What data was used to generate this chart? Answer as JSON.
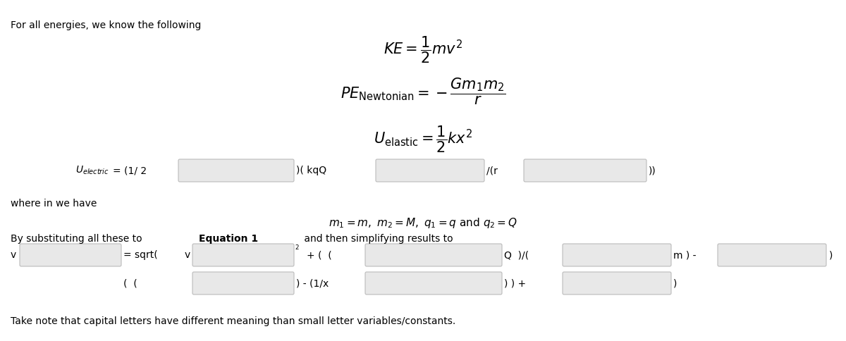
{
  "bg_color": "#ffffff",
  "text_color": "#000000",
  "box_color": "#e8e8e8",
  "box_edge_color": "#cccccc",
  "title_text": "For all energies, we know the following",
  "eq1_latex": "$KE = \\dfrac{1}{2}mv^2$",
  "eq2_latex": "$PE_{\\mathrm{Newtonian}} = -\\dfrac{Gm_1m_2}{r}$",
  "eq3_latex": "$U_{\\mathrm{elastic}} = \\dfrac{1}{2}kx^2$",
  "where_text": "where in we have",
  "subst_text1": "By substituting all these to ",
  "subst_bold": "Equation 1",
  "subst_text2": " and then simplifying results to",
  "m_eq_latex": "$m_1 = m,\\ m_2 = M,\\ q_1 = q\\ \\mathrm{and}\\ q_2 = Q$",
  "note_text": "Take note that capital letters have different meaning than small letter variables/constants.",
  "electric_label": "$U_{\\mathit{electric}}$",
  "electric_eq": "= (1/ 2",
  "electric_kqQ": ")( kqQ",
  "electric_r": "/(r",
  "electric_end": "))",
  "v_label": "v",
  "v_eq": "= sqrt(",
  "v_var": "v",
  "v_row1_mid": "$^2$ + (  (",
  "v_row1_Q": "Q  )/(",
  "v_row1_m": "m ) -",
  "v_row1_end": ")",
  "v_row2_paren": "(  (",
  "v_row2_mid": ") - (1/x",
  "v_row2_rp": ") ) +",
  "v_row2_end": ")"
}
